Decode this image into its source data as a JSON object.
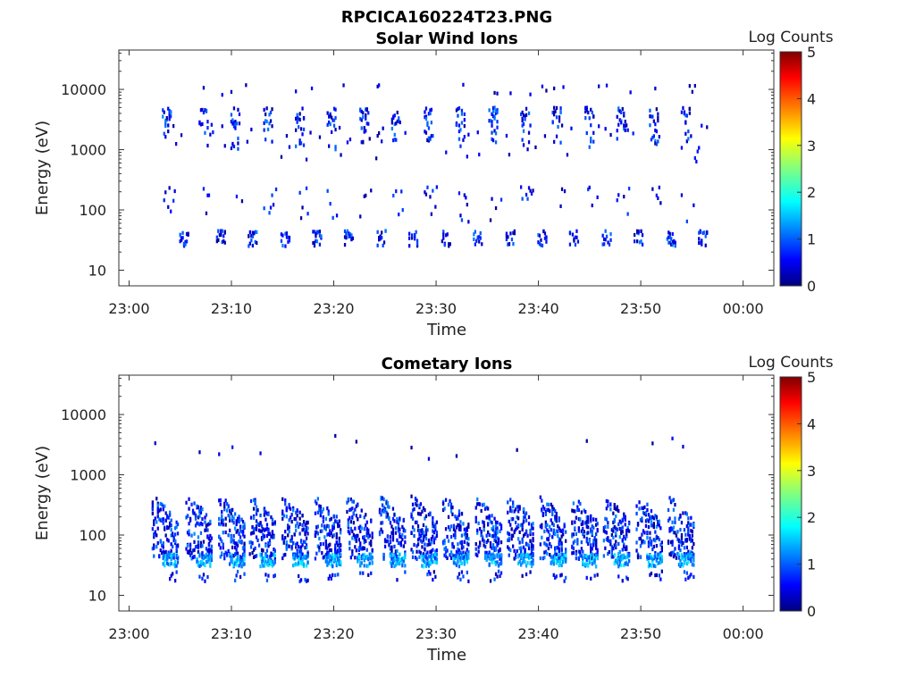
{
  "figure": {
    "suptitle": "RPCICA160224T23.PNG"
  },
  "colors": {
    "axis": "#333333",
    "colormap": [
      "#00007f",
      "#0000ff",
      "#0080ff",
      "#00ffff",
      "#80ff80",
      "#ffff00",
      "#ff8000",
      "#ff0000",
      "#7f0000"
    ]
  },
  "chart_data": [
    {
      "type": "heatmap",
      "title": "Solar Wind Ions",
      "xlabel": "Time",
      "ylabel": "Energy (eV)",
      "colorbar_label": "Log Counts",
      "colorbar_ticks": [
        "0",
        "1",
        "2",
        "3",
        "4",
        "5"
      ],
      "clim": [
        0,
        5
      ],
      "y_scale": "log",
      "ylim": [
        5.5,
        45000
      ],
      "y_ticks": [
        10,
        100,
        1000,
        10000
      ],
      "y_tick_labels": [
        "10",
        "100",
        "1000",
        "10000"
      ],
      "xlim_minutes": [
        -1,
        63
      ],
      "x_ticks_minutes": [
        0,
        10,
        20,
        30,
        40,
        50,
        60
      ],
      "x_tick_labels": [
        "23:00",
        "23:10",
        "23:20",
        "23:30",
        "23:40",
        "23:50",
        "00:00"
      ],
      "cycle_start_minutes": [
        3.2,
        6.8,
        9.9,
        13.1,
        16.2,
        19.3,
        22.5,
        25.6,
        28.8,
        31.9,
        35.1,
        38.2,
        41.3,
        44.5,
        47.6,
        50.8,
        53.9
      ],
      "value_range_log_counts": [
        0,
        1.2
      ]
    },
    {
      "type": "heatmap",
      "title": "Cometary Ions",
      "xlabel": "Time",
      "ylabel": "Energy (eV)",
      "colorbar_label": "Log Counts",
      "colorbar_ticks": [
        "0",
        "1",
        "2",
        "3",
        "4",
        "5"
      ],
      "clim": [
        0,
        5
      ],
      "y_scale": "log",
      "ylim": [
        5.5,
        45000
      ],
      "y_ticks": [
        10,
        100,
        1000,
        10000
      ],
      "y_tick_labels": [
        "10",
        "100",
        "1000",
        "10000"
      ],
      "xlim_minutes": [
        -1,
        63
      ],
      "x_ticks_minutes": [
        0,
        10,
        20,
        30,
        40,
        50,
        60
      ],
      "x_tick_labels": [
        "23:00",
        "23:10",
        "23:20",
        "23:30",
        "23:40",
        "23:50",
        "00:00"
      ],
      "cycle_start_minutes": [
        2.2,
        5.5,
        8.7,
        11.7,
        14.9,
        18.1,
        21.2,
        24.4,
        27.5,
        30.6,
        33.8,
        36.9,
        40.1,
        43.2,
        46.3,
        49.5,
        52.6
      ],
      "value_range_log_counts": [
        0,
        1.8
      ]
    }
  ]
}
